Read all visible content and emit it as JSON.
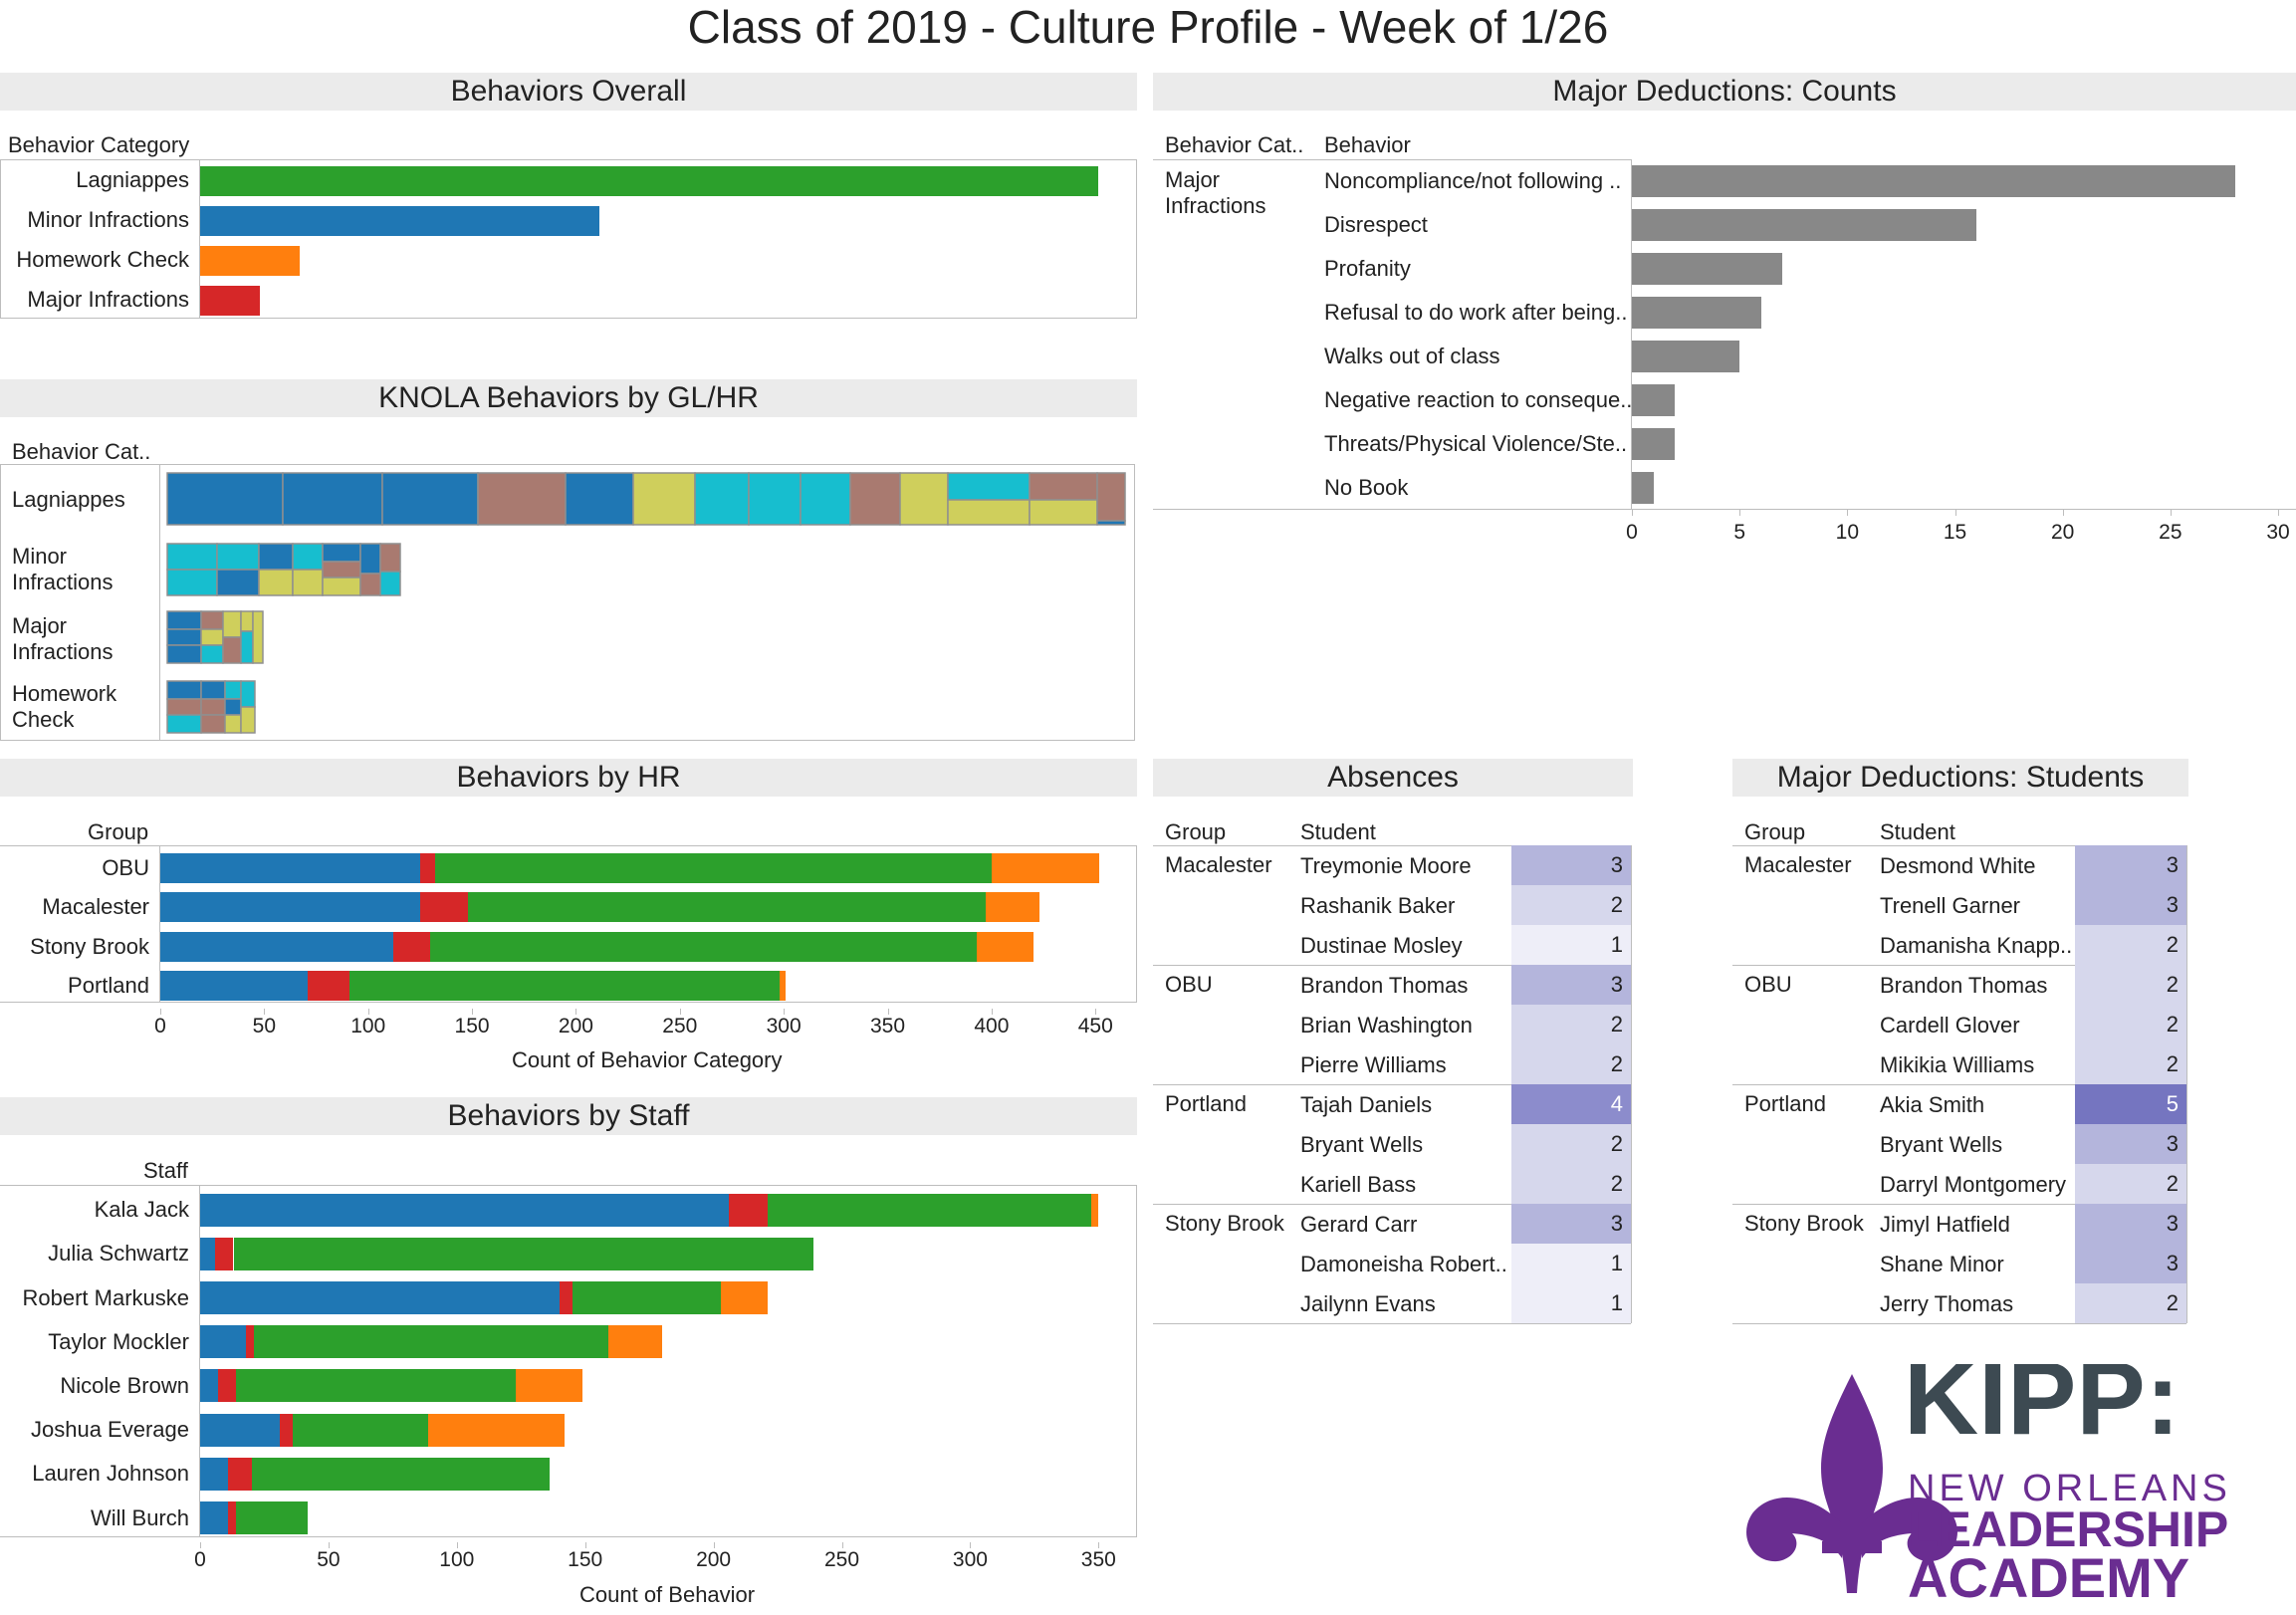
{
  "title": "Class of 2019 - Culture Profile - Week of 1/26",
  "colors": {
    "lagniappes": "#2ca02c",
    "minor": "#1f77b4",
    "homework": "#ff7f0e",
    "major": "#d62728",
    "gray": "#888888",
    "teal": "#17becf",
    "olive": "#cfcf5c",
    "mauve": "#a97a70",
    "logo_purple": "#6a2d91",
    "logo_slate": "#3d4a52"
  },
  "behaviors_overall": {
    "panel_title": "Behaviors Overall",
    "header": "Behavior Category"
  },
  "knola": {
    "panel_title": "KNOLA Behaviors by GL/HR",
    "header": "Behavior Cat..",
    "rows": [
      "Lagniappes",
      "Minor\nInfractions",
      "Major\nInfractions",
      "Homework\nCheck"
    ]
  },
  "behaviors_hr": {
    "panel_title": "Behaviors by HR",
    "header": "Group",
    "xlabel": "Count of Behavior Category"
  },
  "behaviors_staff": {
    "panel_title": "Behaviors by Staff",
    "header": "Staff",
    "xlabel": "Count of Behavior"
  },
  "major_counts": {
    "panel_title": "Major Deductions: Counts",
    "header_cat": "Behavior Cat..",
    "header_beh": "Behavior",
    "category": "Major\nInfractions"
  },
  "absences": {
    "panel_title": "Absences",
    "header_group": "Group",
    "header_student": "Student",
    "groups": [
      {
        "group": "Macalester",
        "rows": [
          {
            "student": "Treymonie Moore",
            "value": 3
          },
          {
            "student": "Rashanik Baker",
            "value": 2
          },
          {
            "student": "Dustinae Mosley",
            "value": 1
          }
        ]
      },
      {
        "group": "OBU",
        "rows": [
          {
            "student": "Brandon Thomas",
            "value": 3
          },
          {
            "student": "Brian Washington",
            "value": 2
          },
          {
            "student": "Pierre Williams",
            "value": 2
          }
        ]
      },
      {
        "group": "Portland",
        "rows": [
          {
            "student": "Tajah Daniels",
            "value": 4
          },
          {
            "student": "Bryant Wells",
            "value": 2
          },
          {
            "student": "Kariell Bass",
            "value": 2
          }
        ]
      },
      {
        "group": "Stony Brook",
        "rows": [
          {
            "student": "Gerard Carr",
            "value": 3
          },
          {
            "student": "Damoneisha Robert..",
            "value": 1
          },
          {
            "student": "Jailynn Evans",
            "value": 1
          }
        ]
      }
    ]
  },
  "major_students": {
    "panel_title": "Major Deductions: Students",
    "header_group": "Group",
    "header_student": "Student",
    "groups": [
      {
        "group": "Macalester",
        "rows": [
          {
            "student": "Desmond White",
            "value": 3
          },
          {
            "student": "Trenell Garner",
            "value": 3
          },
          {
            "student": "Damanisha Knapp..",
            "value": 2
          }
        ]
      },
      {
        "group": "OBU",
        "rows": [
          {
            "student": "Brandon Thomas",
            "value": 2
          },
          {
            "student": "Cardell Glover",
            "value": 2
          },
          {
            "student": "Mikikia Williams",
            "value": 2
          }
        ]
      },
      {
        "group": "Portland",
        "rows": [
          {
            "student": "Akia Smith",
            "value": 5
          },
          {
            "student": "Bryant Wells",
            "value": 3
          },
          {
            "student": "Darryl Montgomery",
            "value": 2
          }
        ]
      },
      {
        "group": "Stony Brook",
        "rows": [
          {
            "student": "Jimyl Hatfield",
            "value": 3
          },
          {
            "student": "Shane Minor",
            "value": 3
          },
          {
            "student": "Jerry Thomas",
            "value": 2
          }
        ]
      }
    ]
  },
  "logo": {
    "line1": "KIPP:",
    "line2": "NEW ORLEANS",
    "line3": "LEADERSHIP",
    "line4": "ACADEMY"
  },
  "chart_data": [
    {
      "id": "behaviors_overall",
      "type": "bar",
      "orientation": "horizontal",
      "categories": [
        "Lagniappes",
        "Minor Infractions",
        "Homework Check",
        "Major Infractions"
      ],
      "values": [
        1510,
        672,
        168,
        100
      ],
      "colors": [
        "#2ca02c",
        "#1f77b4",
        "#ff7f0e",
        "#d62728"
      ],
      "xlim": [
        0,
        1575
      ]
    },
    {
      "id": "behaviors_by_hr",
      "type": "bar",
      "orientation": "horizontal",
      "stacked": true,
      "categories": [
        "OBU",
        "Macalester",
        "Stony Brook",
        "Portland"
      ],
      "series": [
        {
          "values": [
            125,
            125,
            112,
            71
          ],
          "color": "#1f77b4"
        },
        {
          "values": [
            7,
            23,
            18,
            20
          ],
          "color": "#d62728"
        },
        {
          "values": [
            268,
            249,
            263,
            207
          ],
          "color": "#2ca02c"
        },
        {
          "values": [
            52,
            26,
            27,
            3
          ],
          "color": "#ff7f0e"
        }
      ],
      "xticks": [
        0,
        50,
        100,
        150,
        200,
        250,
        300,
        350,
        400,
        450
      ],
      "xlim": [
        0,
        470
      ],
      "xlabel": "Count of Behavior Category"
    },
    {
      "id": "behaviors_by_staff",
      "type": "bar",
      "orientation": "horizontal",
      "stacked": true,
      "categories": [
        "Kala Jack",
        "Julia Schwartz",
        "Robert Markuske",
        "Taylor Mockler",
        "Nicole Brown",
        "Joshua Everage",
        "Lauren Johnson",
        "Will Burch"
      ],
      "series": [
        {
          "values": [
            206,
            6,
            140,
            18,
            7,
            31,
            11,
            11
          ],
          "color": "#1f77b4"
        },
        {
          "values": [
            15,
            7,
            5,
            3,
            7,
            5,
            9,
            3
          ],
          "color": "#d62728"
        },
        {
          "values": [
            126,
            226,
            58,
            138,
            109,
            53,
            116,
            28
          ],
          "color": "#2ca02c"
        },
        {
          "values": [
            3,
            0,
            18,
            21,
            26,
            53,
            0,
            0
          ],
          "color": "#ff7f0e"
        }
      ],
      "xticks": [
        0,
        50,
        100,
        150,
        200,
        250,
        300,
        350
      ],
      "xlim": [
        0,
        365
      ],
      "xlabel": "Count of Behavior"
    },
    {
      "id": "major_deductions_counts",
      "type": "bar",
      "orientation": "horizontal",
      "categories": [
        "Noncompliance/not following ..",
        "Disrespect",
        "Profanity",
        "Refusal to do work after being..",
        "Walks out of class",
        "Negative reaction to conseque..",
        "Threats/Physical Violence/Ste..",
        "No Book"
      ],
      "values": [
        28,
        16,
        7,
        6,
        5,
        2,
        2,
        1
      ],
      "color": "#888888",
      "xticks": [
        0,
        5,
        10,
        15,
        20,
        25,
        30
      ],
      "xlim": [
        0,
        30
      ]
    }
  ]
}
